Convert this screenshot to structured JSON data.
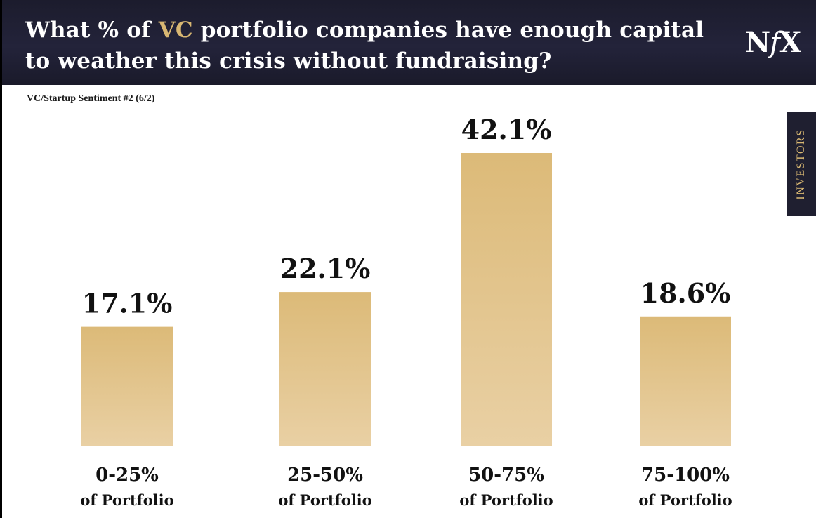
{
  "header": {
    "title_part1": "What % of ",
    "title_accent": "VC",
    "title_part2": " portfolio companies have enough capital to weather this crisis without fundraising?",
    "logo_n": "N",
    "logo_f": "f",
    "logo_x": "X"
  },
  "subtitle": "VC/Startup Sentiment #2 (6/2)",
  "side_tab": "INVESTORS",
  "colors": {
    "header_bg": "#1f1f30",
    "accent": "#d8b772",
    "bar_top": "#dcba78",
    "bar_bottom": "#e9d0a4"
  },
  "chart_data": {
    "type": "bar",
    "title": "What % of VC portfolio companies have enough capital to weather this crisis without fundraising?",
    "categories": [
      "0-25%",
      "25-50%",
      "50-75%",
      "75-100%"
    ],
    "category_sublabel": "of Portfolio",
    "values": [
      17.1,
      22.1,
      42.1,
      18.6
    ],
    "value_labels": [
      "17.1%",
      "22.1%",
      "42.1%",
      "18.6%"
    ],
    "xlabel": "",
    "ylabel": "",
    "ylim": [
      0,
      42.1
    ],
    "grid": false,
    "legend": "none"
  }
}
